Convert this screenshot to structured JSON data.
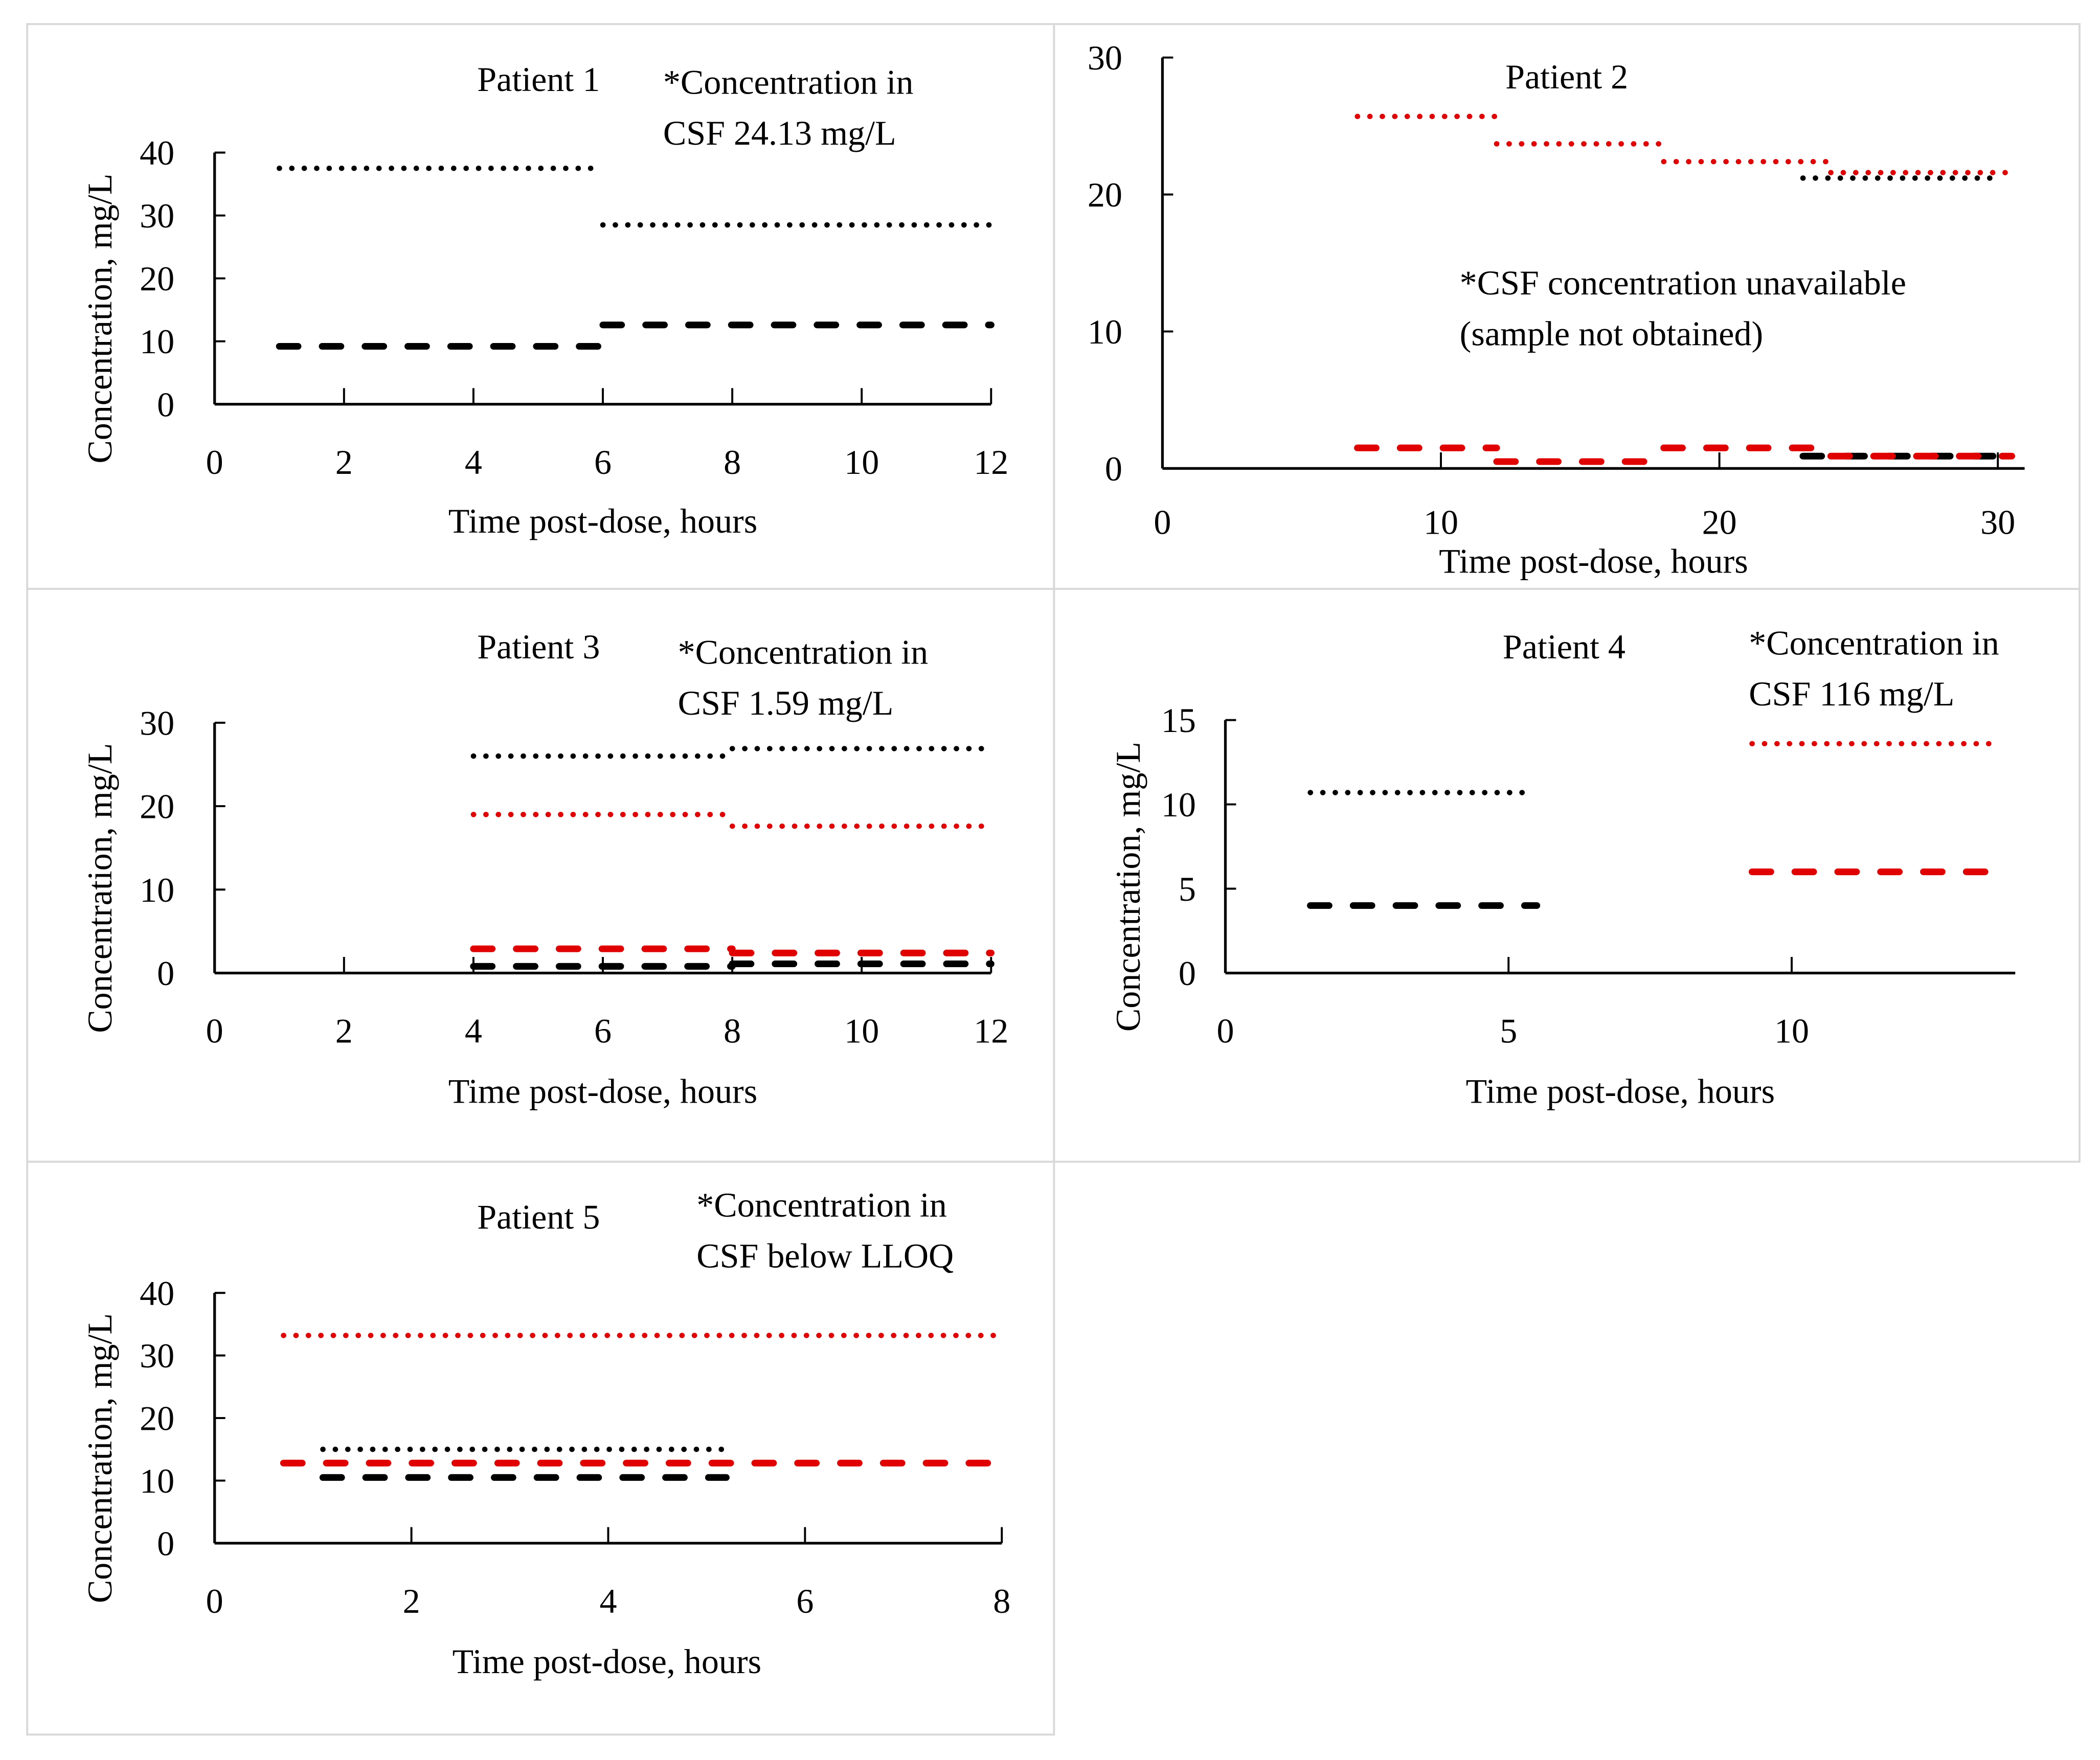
{
  "colors": {
    "black": "#000000",
    "red": "#e00000"
  },
  "chart_data": [
    {
      "type": "line",
      "title": "Patient 1",
      "annotation": [
        "*Concentration in",
        "CSF 24.13 mg/L"
      ],
      "xlabel": "Time post-dose, hours",
      "ylabel": "Concentration, mg/L",
      "xlim": [
        0,
        12
      ],
      "ylim": [
        0,
        40
      ],
      "xticks": [
        "0",
        "2",
        "4",
        "6",
        "8",
        "10",
        "12"
      ],
      "xtick_values": [
        0,
        2,
        4,
        6,
        8,
        10,
        12
      ],
      "yticks": [
        "0",
        "10",
        "20",
        "30",
        "40"
      ],
      "ytick_values": [
        0,
        10,
        20,
        30,
        40
      ],
      "series": [
        {
          "color": "black",
          "style": "dotted",
          "segments": [
            [
              1,
              6,
              37.5
            ],
            [
              6,
              12,
              28.5
            ]
          ]
        },
        {
          "color": "black",
          "style": "dashed",
          "segments": [
            [
              1,
              6,
              9.2
            ],
            [
              6,
              12,
              12.6
            ]
          ]
        }
      ]
    },
    {
      "type": "line",
      "title": "Patient 2",
      "annotation": [
        "*CSF concentration unavailable",
        "(sample not obtained)"
      ],
      "xlabel": "Time post-dose, hours",
      "ylabel": "",
      "xlim": [
        0,
        30
      ],
      "ylim": [
        0,
        30
      ],
      "xticks": [
        "0",
        "10",
        "20",
        "30"
      ],
      "xtick_values": [
        0,
        10,
        20,
        30
      ],
      "yticks": [
        "0",
        "10",
        "20",
        "30"
      ],
      "ytick_values": [
        0,
        10,
        20,
        30
      ],
      "series": [
        {
          "color": "black",
          "style": "dotted",
          "segments": [
            [
              23,
              30,
              21.2
            ]
          ]
        },
        {
          "color": "red",
          "style": "dotted",
          "segments": [
            [
              7,
              12,
              25.7
            ],
            [
              12,
              18,
              23.7
            ],
            [
              18,
              24,
              22.4
            ],
            [
              24,
              30.5,
              21.6
            ]
          ]
        },
        {
          "color": "black",
          "style": "dashed",
          "segments": [
            [
              23,
              30,
              0.9
            ]
          ]
        },
        {
          "color": "red",
          "style": "dashed",
          "segments": [
            [
              7,
              12,
              1.5
            ],
            [
              12,
              18,
              0.5
            ],
            [
              18,
              24,
              1.5
            ],
            [
              24,
              30.5,
              0.9
            ]
          ]
        }
      ]
    },
    {
      "type": "line",
      "title": "Patient 3",
      "annotation": [
        "*Concentration in",
        "CSF 1.59  mg/L"
      ],
      "xlabel": "Time post-dose, hours",
      "ylabel": "Concentration, mg/L",
      "xlim": [
        0,
        12
      ],
      "ylim": [
        0,
        30
      ],
      "xticks": [
        "0",
        "2",
        "4",
        "6",
        "8",
        "10",
        "12"
      ],
      "xtick_values": [
        0,
        2,
        4,
        6,
        8,
        10,
        12
      ],
      "yticks": [
        "0",
        "10",
        "20",
        "30"
      ],
      "ytick_values": [
        0,
        10,
        20,
        30
      ],
      "series": [
        {
          "color": "black",
          "style": "dotted",
          "segments": [
            [
              4,
              8,
              26
            ],
            [
              8,
              12,
              26.9
            ]
          ]
        },
        {
          "color": "red",
          "style": "dotted",
          "segments": [
            [
              4,
              8,
              19
            ],
            [
              8,
              12,
              17.6
            ]
          ]
        },
        {
          "color": "red",
          "style": "dashed",
          "segments": [
            [
              4,
              8,
              2.9
            ],
            [
              8,
              12,
              2.4
            ]
          ]
        },
        {
          "color": "black",
          "style": "dashed",
          "segments": [
            [
              4,
              8,
              0.8
            ],
            [
              8,
              12,
              1.1
            ]
          ]
        }
      ]
    },
    {
      "type": "line",
      "title": "Patient 4",
      "annotation": [
        "*Concentration in",
        "CSF 116 mg/L"
      ],
      "xlabel": "Time post-dose, hours",
      "ylabel": "Concentration, mg/L",
      "xlim": [
        0,
        14
      ],
      "ylim": [
        0,
        15
      ],
      "xticks": [
        "0",
        "5",
        "10"
      ],
      "xtick_values": [
        0,
        5,
        10
      ],
      "yticks": [
        "0",
        "5",
        "10",
        "15"
      ],
      "ytick_values": [
        0,
        5,
        10,
        15
      ],
      "series": [
        {
          "color": "black",
          "style": "dotted",
          "segments": [
            [
              1.5,
              5.3,
              10.7
            ]
          ]
        },
        {
          "color": "black",
          "style": "dashed",
          "segments": [
            [
              1.5,
              5.5,
              4
            ]
          ]
        },
        {
          "color": "red",
          "style": "dotted",
          "segments": [
            [
              9.3,
              13.5,
              13.6
            ]
          ]
        },
        {
          "color": "red",
          "style": "dashed",
          "segments": [
            [
              9.3,
              13.5,
              6
            ]
          ]
        }
      ]
    },
    {
      "type": "line",
      "title": "Patient 5",
      "annotation": [
        "*Concentration in",
        "CSF below LLOQ"
      ],
      "xlabel": "Time post-dose, hours",
      "ylabel": "Concentration, mg/L",
      "xlim": [
        0,
        8
      ],
      "ylim": [
        0,
        40
      ],
      "xticks": [
        "0",
        "2",
        "4",
        "6",
        "8"
      ],
      "xtick_values": [
        0,
        2,
        4,
        6,
        8
      ],
      "yticks": [
        "0",
        "10",
        "20",
        "30",
        "40"
      ],
      "ytick_values": [
        0,
        10,
        20,
        30,
        40
      ],
      "series": [
        {
          "color": "red",
          "style": "dotted",
          "segments": [
            [
              0.7,
              8,
              33.2
            ]
          ]
        },
        {
          "color": "black",
          "style": "dotted",
          "segments": [
            [
              1.1,
              5.2,
              15
            ]
          ]
        },
        {
          "color": "red",
          "style": "dashed",
          "segments": [
            [
              0.7,
              8,
              12.8
            ]
          ]
        },
        {
          "color": "black",
          "style": "dashed",
          "segments": [
            [
              1.1,
              5.2,
              10.5
            ]
          ]
        }
      ]
    }
  ]
}
